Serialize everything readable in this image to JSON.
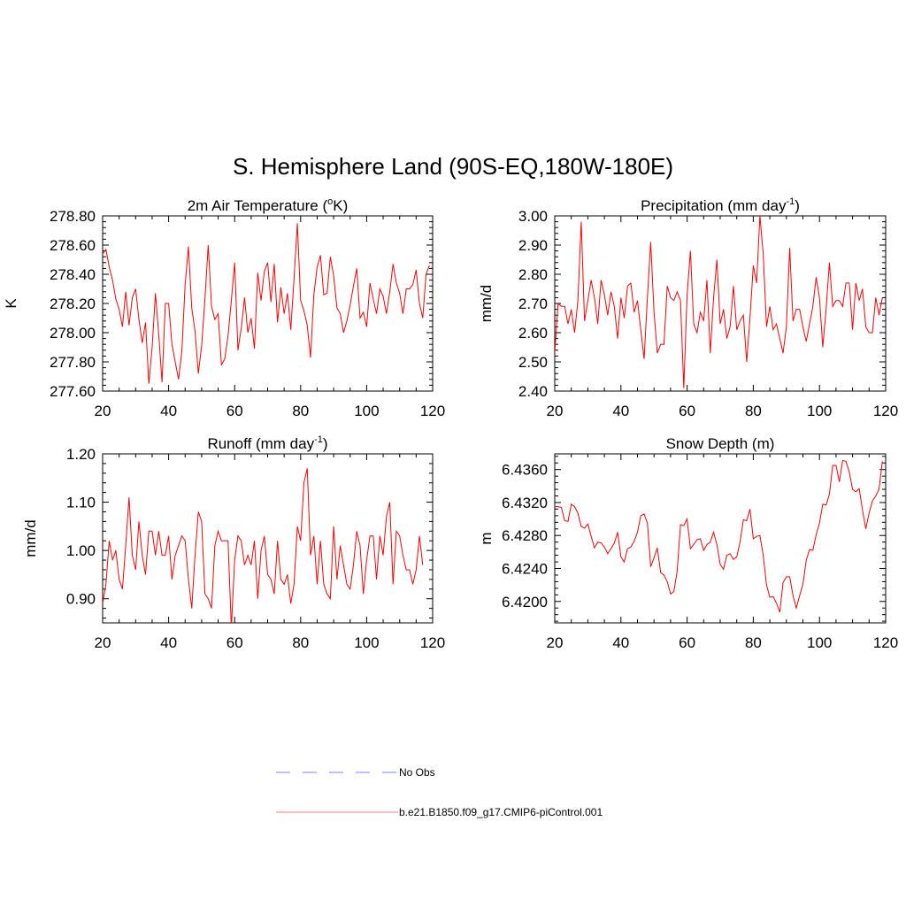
{
  "title": "S. Hemisphere Land (90S-EQ,180W-180E)",
  "colors": {
    "model": "#ff0000",
    "obs": "#9999ff",
    "axis": "#000000"
  },
  "legend": {
    "obs_label": "No Obs",
    "model_label": "b.e21.B1850.f09_g17.CMIP6-piControl.001"
  },
  "chart_data": [
    {
      "type": "line",
      "title": "2m Air Temperature",
      "title_unit": "K",
      "title_unit_prefix": "o",
      "xlabel": "",
      "ylabel": "K",
      "xlim": [
        20,
        120
      ],
      "ylim": [
        277.6,
        278.8
      ],
      "xticks": [
        "20",
        "40",
        "60",
        "80",
        "100",
        "120"
      ],
      "yticks": [
        "277.60",
        "277.80",
        "278.00",
        "278.20",
        "278.40",
        "278.60",
        "278.80"
      ],
      "x_start": 20,
      "series": [
        {
          "name": "b.e21.B1850.f09_g17.CMIP6-piControl.001",
          "values": [
            278.54,
            278.57,
            278.45,
            278.36,
            278.23,
            278.16,
            278.04,
            278.28,
            278.05,
            278.24,
            278.3,
            278.09,
            277.93,
            278.07,
            277.65,
            277.9,
            278.27,
            277.99,
            277.66,
            278.2,
            278.2,
            277.92,
            277.8,
            277.68,
            277.87,
            278.33,
            278.59,
            278.17,
            278.01,
            277.72,
            277.91,
            278.23,
            278.6,
            278.18,
            278.09,
            278.13,
            277.78,
            277.82,
            277.98,
            278.22,
            278.48,
            277.88,
            278.03,
            278.24,
            278.0,
            278.1,
            277.89,
            278.41,
            278.22,
            278.42,
            278.48,
            278.21,
            278.47,
            278.07,
            278.31,
            278.13,
            278.27,
            278.02,
            278.37,
            278.75,
            278.22,
            278.15,
            278.05,
            277.83,
            278.26,
            278.45,
            278.53,
            278.26,
            278.27,
            278.52,
            278.39,
            278.17,
            278.13,
            278.0,
            278.08,
            278.19,
            278.32,
            278.44,
            278.1,
            278.14,
            278.04,
            278.34,
            278.23,
            278.13,
            278.3,
            278.25,
            278.13,
            278.28,
            278.47,
            278.34,
            278.27,
            278.13,
            278.3,
            278.3,
            278.33,
            278.43,
            278.2,
            278.1,
            278.4,
            278.46
          ]
        }
      ]
    },
    {
      "type": "line",
      "title": "Precipitation",
      "title_unit_base": "mm day",
      "title_unit_exp": "-1",
      "xlabel": "",
      "ylabel": "mm/d",
      "xlim": [
        20,
        120
      ],
      "ylim": [
        2.4,
        3.0
      ],
      "xticks": [
        "20",
        "40",
        "60",
        "80",
        "100",
        "120"
      ],
      "yticks": [
        "2.40",
        "2.50",
        "2.60",
        "2.70",
        "2.80",
        "2.90",
        "3.00"
      ],
      "x_start": 20,
      "series": [
        {
          "name": "b.e21.B1850.f09_g17.CMIP6-piControl.001",
          "values": [
            2.53,
            2.7,
            2.69,
            2.69,
            2.63,
            2.68,
            2.6,
            2.71,
            2.98,
            2.64,
            2.71,
            2.78,
            2.72,
            2.63,
            2.78,
            2.73,
            2.66,
            2.74,
            2.69,
            2.58,
            2.72,
            2.65,
            2.76,
            2.77,
            2.67,
            2.71,
            2.61,
            2.51,
            2.72,
            2.91,
            2.67,
            2.53,
            2.56,
            2.56,
            2.76,
            2.72,
            2.71,
            2.74,
            2.71,
            2.41,
            2.73,
            2.88,
            2.63,
            2.6,
            2.67,
            2.64,
            2.78,
            2.53,
            2.72,
            2.85,
            2.63,
            2.68,
            2.58,
            2.62,
            2.76,
            2.61,
            2.64,
            2.66,
            2.5,
            2.65,
            2.83,
            2.77,
            3.0,
            2.87,
            2.62,
            2.69,
            2.61,
            2.63,
            2.58,
            2.53,
            2.62,
            2.89,
            2.64,
            2.68,
            2.68,
            2.62,
            2.57,
            2.63,
            2.69,
            2.79,
            2.72,
            2.55,
            2.68,
            2.84,
            2.69,
            2.71,
            2.71,
            2.69,
            2.77,
            2.77,
            2.61,
            2.77,
            2.71,
            2.75,
            2.62,
            2.6,
            2.6,
            2.72,
            2.66,
            2.72
          ]
        }
      ]
    },
    {
      "type": "line",
      "title": "Runoff",
      "title_unit_base": "mm day",
      "title_unit_exp": "-1",
      "xlabel": "",
      "ylabel": "mm/d",
      "xlim": [
        20,
        120
      ],
      "ylim": [
        0.85,
        1.2
      ],
      "xticks": [
        "20",
        "40",
        "60",
        "80",
        "100",
        "120"
      ],
      "yticks": [
        "0.90",
        "1.00",
        "1.10",
        "1.20"
      ],
      "x_start": 20,
      "series": [
        {
          "name": "b.e21.B1850.f09_g17.CMIP6-piControl.001",
          "values": [
            0.89,
            0.93,
            1.02,
            0.98,
            1.0,
            0.94,
            0.92,
            1.01,
            1.11,
            0.99,
            0.96,
            1.06,
            0.99,
            0.95,
            1.04,
            1.04,
            0.99,
            1.04,
            0.99,
            0.99,
            1.03,
            0.94,
            0.99,
            1.01,
            1.03,
            1.02,
            0.94,
            0.88,
            0.99,
            1.08,
            1.06,
            0.91,
            0.9,
            0.88,
            1.01,
            1.04,
            1.02,
            1.02,
            1.02,
            0.84,
            0.98,
            1.03,
            1.02,
            0.97,
            0.99,
            0.97,
            1.02,
            0.9,
            1.0,
            1.03,
            0.95,
            0.94,
            0.91,
            1.02,
            0.94,
            0.93,
            0.95,
            0.89,
            0.93,
            1.05,
            1.02,
            1.14,
            1.17,
            0.99,
            1.03,
            0.93,
            1.02,
            0.93,
            0.91,
            0.9,
            1.05,
            0.94,
            1.01,
            0.97,
            0.93,
            0.92,
            0.97,
            1.04,
            1.01,
            0.91,
            0.98,
            1.03,
            1.03,
            0.94,
            1.03,
            0.99,
            1.07,
            1.1,
            0.93,
            1.04,
            1.03,
            0.99,
            0.96,
            0.96,
            0.93,
            0.96,
            1.03,
            0.97
          ]
        }
      ]
    },
    {
      "type": "line",
      "title": "Snow Depth (m)",
      "xlabel": "",
      "ylabel": "m",
      "xlim": [
        20,
        120
      ],
      "ylim": [
        6.4174,
        6.4379
      ],
      "xticks": [
        "20",
        "40",
        "60",
        "80",
        "100",
        "120"
      ],
      "yticks": [
        "6.4200",
        "6.4240",
        "6.4280",
        "6.4320",
        "6.4360"
      ],
      "x_start": 20,
      "series": [
        {
          "name": "b.e21.B1850.f09_g17.CMIP6-piControl.001",
          "values": [
            6.4315,
            6.4315,
            6.4314,
            6.4298,
            6.4297,
            6.4318,
            6.4315,
            6.4307,
            6.4291,
            6.4289,
            6.4294,
            6.4279,
            6.4265,
            6.4272,
            6.4271,
            6.4266,
            6.4258,
            6.4264,
            6.4271,
            6.4284,
            6.4254,
            6.4248,
            6.4264,
            6.4266,
            6.4273,
            6.4284,
            6.4304,
            6.4306,
            6.4295,
            6.4242,
            6.4253,
            6.4265,
            6.4235,
            6.4232,
            6.4224,
            6.4209,
            6.4212,
            6.4237,
            6.4293,
            6.4292,
            6.43,
            6.4264,
            6.4269,
            6.4275,
            6.4276,
            6.4262,
            6.4269,
            6.4272,
            6.4284,
            6.4269,
            6.4245,
            6.4239,
            6.4256,
            6.4258,
            6.4251,
            6.4254,
            6.4272,
            6.4299,
            6.4298,
            6.4312,
            6.4276,
            6.4279,
            6.428,
            6.4256,
            6.422,
            6.4205,
            6.4206,
            6.4198,
            6.4187,
            6.4223,
            6.423,
            6.423,
            6.4207,
            6.4192,
            6.4207,
            6.4221,
            6.425,
            6.4263,
            6.4262,
            6.4281,
            6.4295,
            6.4318,
            6.4317,
            6.433,
            6.4365,
            6.4365,
            6.4345,
            6.4371,
            6.437,
            6.4357,
            6.4336,
            6.4333,
            6.4337,
            6.4311,
            6.4288,
            6.4307,
            6.4322,
            6.4328,
            6.4336,
            6.437
          ]
        }
      ]
    }
  ]
}
